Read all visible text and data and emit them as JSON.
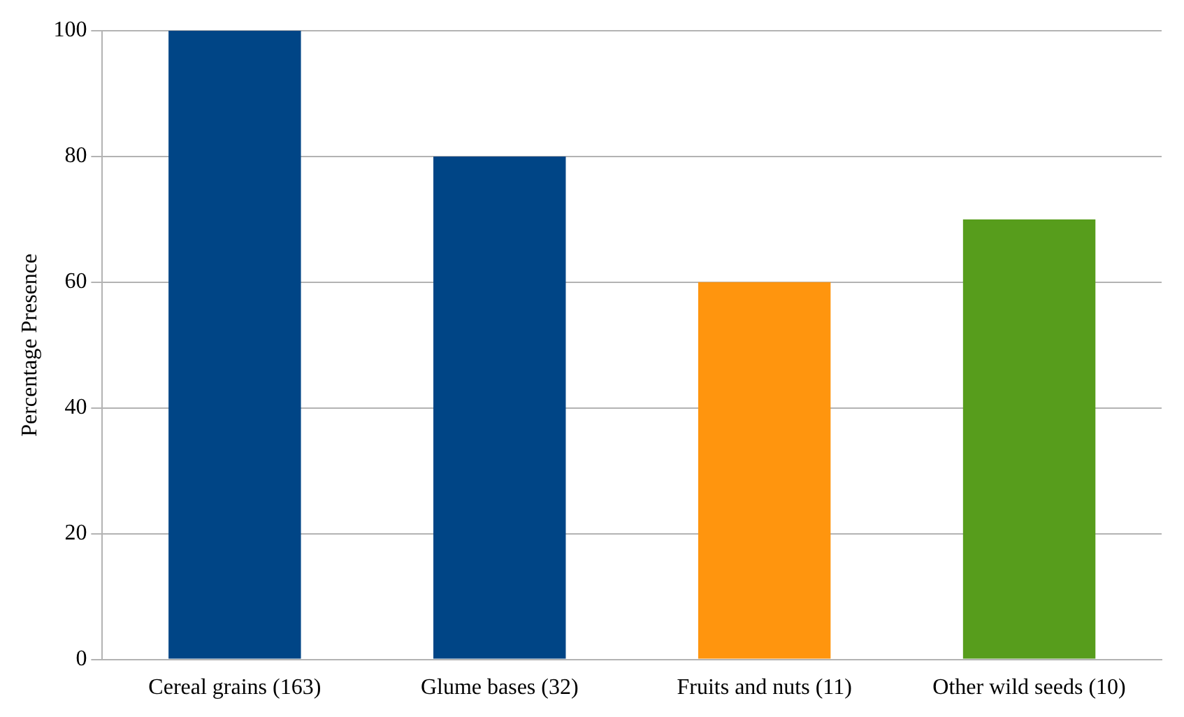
{
  "chart_data": {
    "type": "bar",
    "ylabel": "Percentage Presence",
    "categories": [
      "Cereal grains (163)",
      "Glume bases (32)",
      "Fruits and nuts (11)",
      "Other wild seeds (10)"
    ],
    "values": [
      100,
      80,
      60,
      70
    ],
    "colors": [
      "#004586",
      "#004586",
      "#ff950e",
      "#579d1c"
    ],
    "ylim": [
      0,
      100
    ],
    "yticks": [
      0,
      20,
      40,
      60,
      80,
      100
    ],
    "grid": "y"
  }
}
